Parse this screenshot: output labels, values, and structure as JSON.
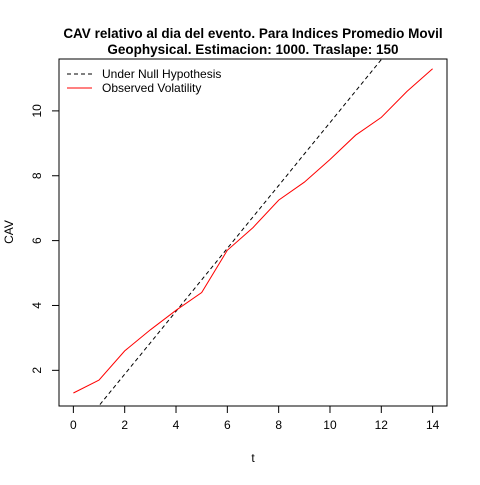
{
  "chart_data": {
    "type": "line",
    "title_line1": "CAV relativo al dia del evento. Para Indices Promedio Movil",
    "title_line2": "Geophysical. Estimacion: 1000. Traslape: 150",
    "xlabel": "t",
    "ylabel": "CAV",
    "xlim": [
      -0.56,
      14.56
    ],
    "ylim": [
      0.9,
      11.6
    ],
    "x_ticks": [
      0,
      2,
      4,
      6,
      8,
      10,
      12,
      14
    ],
    "y_ticks": [
      2,
      4,
      6,
      8,
      10
    ],
    "legend_position": "top-left",
    "series": [
      {
        "name": "Under Null Hypothesis",
        "color": "#000000",
        "dash": true,
        "x": [
          0,
          1,
          2,
          3,
          4,
          5,
          6,
          7,
          8,
          9,
          10,
          11,
          12,
          13,
          14
        ],
        "y": [
          -0.06,
          0.91,
          1.88,
          2.85,
          3.82,
          4.79,
          5.76,
          6.73,
          7.7,
          8.67,
          9.64,
          10.61,
          11.58,
          12.55,
          13.52
        ]
      },
      {
        "name": "Observed Volatility",
        "color": "#ff0000",
        "dash": false,
        "x": [
          0,
          1,
          2,
          3,
          4,
          5,
          6,
          7,
          8,
          9,
          10,
          11,
          12,
          13,
          14
        ],
        "y": [
          1.3,
          1.7,
          2.6,
          3.25,
          3.85,
          4.4,
          5.7,
          6.4,
          7.25,
          7.8,
          8.5,
          9.25,
          9.8,
          10.6,
          11.3
        ]
      }
    ]
  }
}
